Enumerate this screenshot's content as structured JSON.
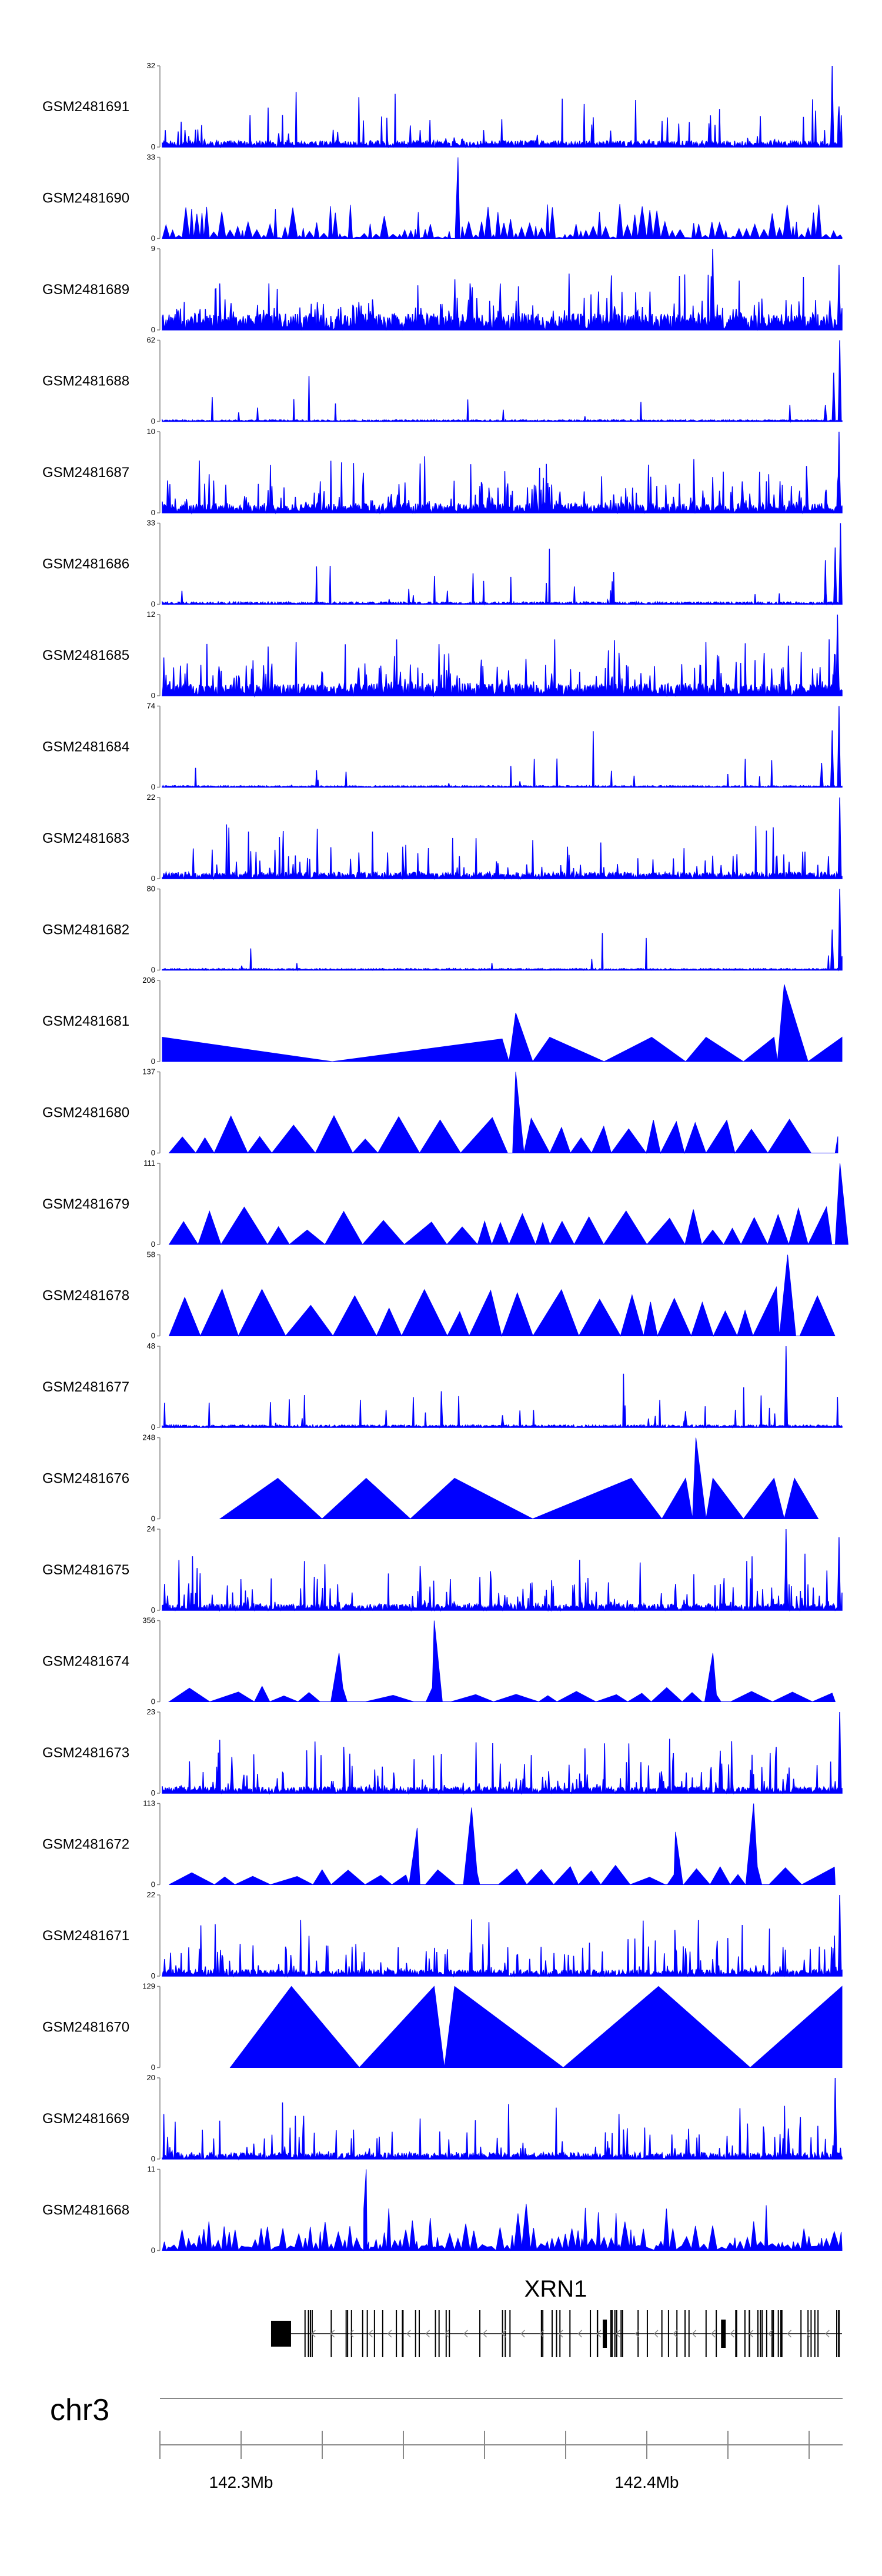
{
  "chart_data": {
    "type": "area",
    "title": "",
    "xlabel": "",
    "ylabel": "",
    "chromosome": "chr3",
    "x_ticks": [
      "142.3Mb",
      "142.4Mb"
    ],
    "tracks": [
      {
        "name": "GSM2481691",
        "ymax": 32,
        "ymin": 0,
        "pattern": "noise",
        "base": 0.08,
        "spikes": 0.25,
        "peaks": [
          [
            0.985,
            1.0
          ],
          [
            0.995,
            0.5
          ]
        ]
      },
      {
        "name": "GSM2481690",
        "ymax": 33,
        "ymin": 0,
        "pattern": "spiky",
        "base": 0.05,
        "spikes": 0.6,
        "peaks": [
          [
            0.435,
            1.0
          ]
        ]
      },
      {
        "name": "GSM2481689",
        "ymax": 9,
        "ymin": 0,
        "pattern": "noise",
        "base": 0.2,
        "spikes": 0.6,
        "peaks": [
          [
            0.81,
            1.0
          ],
          [
            0.995,
            0.8
          ]
        ]
      },
      {
        "name": "GSM2481688",
        "ymax": 62,
        "ymin": 0,
        "pattern": "noise",
        "base": 0.02,
        "spikes": 0.03,
        "peaks": [
          [
            0.975,
            0.2
          ],
          [
            0.988,
            0.6
          ],
          [
            0.997,
            1.0
          ]
        ]
      },
      {
        "name": "GSM2481687",
        "ymax": 10,
        "ymin": 0,
        "pattern": "noise",
        "base": 0.12,
        "spikes": 0.55,
        "peaks": [
          [
            0.996,
            1.0
          ]
        ]
      },
      {
        "name": "GSM2481686",
        "ymax": 33,
        "ymin": 0,
        "pattern": "noise",
        "base": 0.03,
        "spikes": 0.06,
        "peaks": [
          [
            0.975,
            0.3
          ],
          [
            0.99,
            0.7
          ],
          [
            0.998,
            1.0
          ]
        ]
      },
      {
        "name": "GSM2481685",
        "ymax": 12,
        "ymin": 0,
        "pattern": "noise",
        "base": 0.15,
        "spikes": 0.6,
        "peaks": [
          [
            0.993,
            1.0
          ]
        ]
      },
      {
        "name": "GSM2481684",
        "ymax": 74,
        "ymin": 0,
        "pattern": "noise",
        "base": 0.02,
        "spikes": 0.04,
        "peaks": [
          [
            0.97,
            0.3
          ],
          [
            0.985,
            0.7
          ],
          [
            0.996,
            1.0
          ]
        ]
      },
      {
        "name": "GSM2481683",
        "ymax": 22,
        "ymin": 0,
        "pattern": "noise",
        "base": 0.08,
        "spikes": 0.3,
        "peaks": [
          [
            0.997,
            1.0
          ]
        ]
      },
      {
        "name": "GSM2481682",
        "ymax": 80,
        "ymin": 0,
        "pattern": "noise",
        "base": 0.02,
        "spikes": 0.05,
        "peaks": [
          [
            0.985,
            0.5
          ],
          [
            0.997,
            1.0
          ]
        ]
      },
      {
        "name": "GSM2481681",
        "ymax": 206,
        "ymin": 0,
        "pattern": "points",
        "points": [
          [
            0.0,
            0.3
          ],
          [
            0.25,
            0.0
          ],
          [
            0.5,
            0.28
          ],
          [
            0.51,
            0.0
          ],
          [
            0.52,
            0.6
          ],
          [
            0.545,
            0.0
          ],
          [
            0.57,
            0.3
          ],
          [
            0.65,
            0.0
          ],
          [
            0.72,
            0.3
          ],
          [
            0.77,
            0.0
          ],
          [
            0.8,
            0.3
          ],
          [
            0.855,
            0.0
          ],
          [
            0.9,
            0.3
          ],
          [
            0.905,
            0.0
          ],
          [
            0.915,
            0.95
          ],
          [
            0.95,
            0.0
          ],
          [
            1.0,
            0.3
          ]
        ]
      },
      {
        "name": "GSM2481680",
        "ymax": 137,
        "ymin": 0,
        "pattern": "triangles",
        "spikes": 0.85,
        "peaks": [
          [
            0.52,
            1.0
          ]
        ]
      },
      {
        "name": "GSM2481679",
        "ymax": 111,
        "ymin": 0,
        "pattern": "triangles",
        "spikes": 0.85,
        "peaks": [
          [
            0.997,
            1.0
          ]
        ]
      },
      {
        "name": "GSM2481678",
        "ymax": 58,
        "ymin": 0,
        "pattern": "triangles",
        "spikes": 1.1,
        "peaks": [
          [
            0.92,
            1.0
          ]
        ]
      },
      {
        "name": "GSM2481677",
        "ymax": 48,
        "ymin": 0,
        "pattern": "noise",
        "base": 0.03,
        "spikes": 0.1,
        "peaks": [
          [
            0.918,
            1.0
          ],
          [
            0.5,
            0.15
          ],
          [
            0.77,
            0.2
          ]
        ]
      },
      {
        "name": "GSM2481676",
        "ymax": 248,
        "ymin": 0,
        "pattern": "points",
        "points": [
          [
            0.085,
            0.0
          ],
          [
            0.17,
            0.5
          ],
          [
            0.235,
            0.0
          ],
          [
            0.3,
            0.5
          ],
          [
            0.365,
            0.0
          ],
          [
            0.43,
            0.5
          ],
          [
            0.545,
            0.0
          ],
          [
            0.69,
            0.5
          ],
          [
            0.735,
            0.0
          ],
          [
            0.77,
            0.5
          ],
          [
            0.78,
            0.0
          ],
          [
            0.785,
            1.0
          ],
          [
            0.8,
            0.0
          ],
          [
            0.81,
            0.5
          ],
          [
            0.855,
            0.0
          ],
          [
            0.9,
            0.5
          ],
          [
            0.915,
            0.0
          ],
          [
            0.93,
            0.5
          ],
          [
            0.965,
            0.0
          ]
        ]
      },
      {
        "name": "GSM2481675",
        "ymax": 24,
        "ymin": 0,
        "pattern": "noise",
        "base": 0.08,
        "spikes": 0.45,
        "peaks": [
          [
            0.918,
            1.0
          ],
          [
            0.995,
            0.9
          ]
        ]
      },
      {
        "name": "GSM2481674",
        "ymax": 356,
        "ymin": 0,
        "pattern": "triangles",
        "spikes": 0.35,
        "peaks": [
          [
            0.4,
            1.0
          ],
          [
            0.26,
            0.6
          ],
          [
            0.81,
            0.6
          ]
        ]
      },
      {
        "name": "GSM2481673",
        "ymax": 23,
        "ymin": 0,
        "pattern": "noise",
        "base": 0.08,
        "spikes": 0.45,
        "peaks": [
          [
            0.997,
            1.0
          ]
        ]
      },
      {
        "name": "GSM2481672",
        "ymax": 113,
        "ymin": 0,
        "pattern": "triangles",
        "spikes": 0.45,
        "peaks": [
          [
            0.455,
            0.95
          ],
          [
            0.375,
            0.7
          ],
          [
            0.87,
            1.0
          ],
          [
            0.755,
            0.65
          ]
        ]
      },
      {
        "name": "GSM2481671",
        "ymax": 22,
        "ymin": 0,
        "pattern": "noise",
        "base": 0.08,
        "spikes": 0.4,
        "peaks": [
          [
            0.997,
            1.0
          ]
        ]
      },
      {
        "name": "GSM2481670",
        "ymax": 129,
        "ymin": 0,
        "pattern": "points",
        "points": [
          [
            0.1,
            0.0
          ],
          [
            0.19,
            1.0
          ],
          [
            0.29,
            0.0
          ],
          [
            0.4,
            1.0
          ],
          [
            0.415,
            0.0
          ],
          [
            0.43,
            1.0
          ],
          [
            0.59,
            0.0
          ],
          [
            0.73,
            1.0
          ],
          [
            0.865,
            0.0
          ],
          [
            1.0,
            1.0
          ]
        ]
      },
      {
        "name": "GSM2481669",
        "ymax": 20,
        "ymin": 0,
        "pattern": "noise",
        "base": 0.08,
        "spikes": 0.3,
        "peaks": [
          [
            0.99,
            1.0
          ]
        ]
      },
      {
        "name": "GSM2481668",
        "ymax": 11,
        "ymin": 0,
        "pattern": "spiky",
        "base": 0.2,
        "spikes": 0.75,
        "peaks": [
          [
            0.3,
            1.0
          ]
        ]
      }
    ],
    "gene": {
      "name": "XRN1",
      "strand": "-"
    },
    "colors": {
      "signal": "#0000ff",
      "axis": "#444444",
      "gene": "#000000"
    }
  }
}
